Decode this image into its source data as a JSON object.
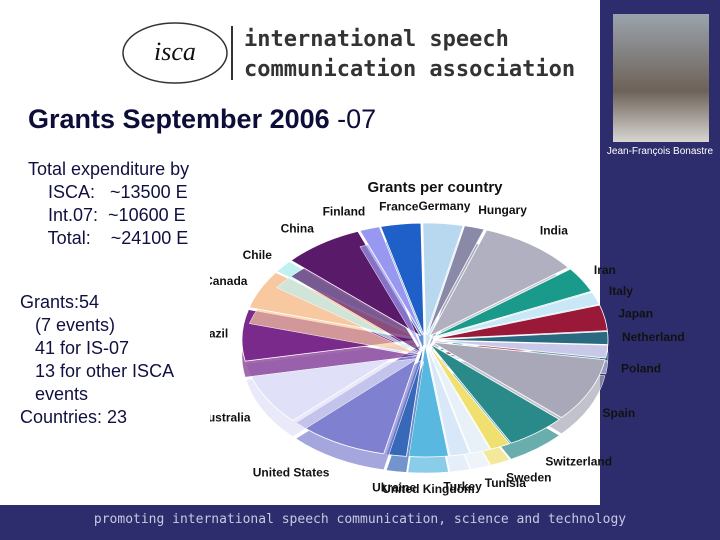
{
  "header": {
    "logo_mark": "isca",
    "org_line1": "international speech",
    "org_line2": "communication association"
  },
  "title": {
    "main": "Grants September 2006",
    "suffix": "-07"
  },
  "photo_caption": "Jean-François Bonastre",
  "expenditure": [
    "Total expenditure by",
    "    ISCA:   ~13500 E",
    "    Int.07:  ~10600 E",
    "    Total:    ~24100 E"
  ],
  "grants_text": [
    "Grants:54",
    "   (7 events)",
    "   41 for IS-07",
    "   13 for other ISCA",
    "   events",
    "Countries: 23"
  ],
  "footer": "promoting international speech communication, science and technology",
  "chart_data": {
    "type": "pie",
    "title": "Grants per country",
    "categories": [
      "France",
      "Germany",
      "Hungary",
      "India",
      "Iran",
      "Italy",
      "Japan",
      "Netherland",
      "Poland",
      "Spain",
      "Switzerland",
      "Sweden",
      "Tunisia",
      "Turkey",
      "United Kingdom",
      "Ukraine",
      "United States",
      "Australia",
      "Brazil",
      "Canada",
      "Chile",
      "China",
      "Finland"
    ],
    "values": [
      2,
      2,
      1,
      5,
      2,
      1,
      2,
      1,
      1,
      5,
      3,
      1,
      1,
      1,
      2,
      1,
      5,
      5,
      4,
      3,
      1,
      4,
      1
    ],
    "colors": [
      "#1f5fc8",
      "#b8d8f0",
      "#8a8aa8",
      "#b0b0c0",
      "#1a9a8a",
      "#c8e8f8",
      "#9a1838",
      "#2a6a80",
      "#c8c8e8",
      "#a8a8b8",
      "#2a8a8a",
      "#f0e070",
      "#e8f0f8",
      "#d8e8f8",
      "#58b8e0",
      "#3868b8",
      "#8080d0",
      "#e0e0f8",
      "#7a2a8a",
      "#f8c8a0",
      "#c0f0f0",
      "#5a1a6a",
      "#9898f0"
    ]
  }
}
